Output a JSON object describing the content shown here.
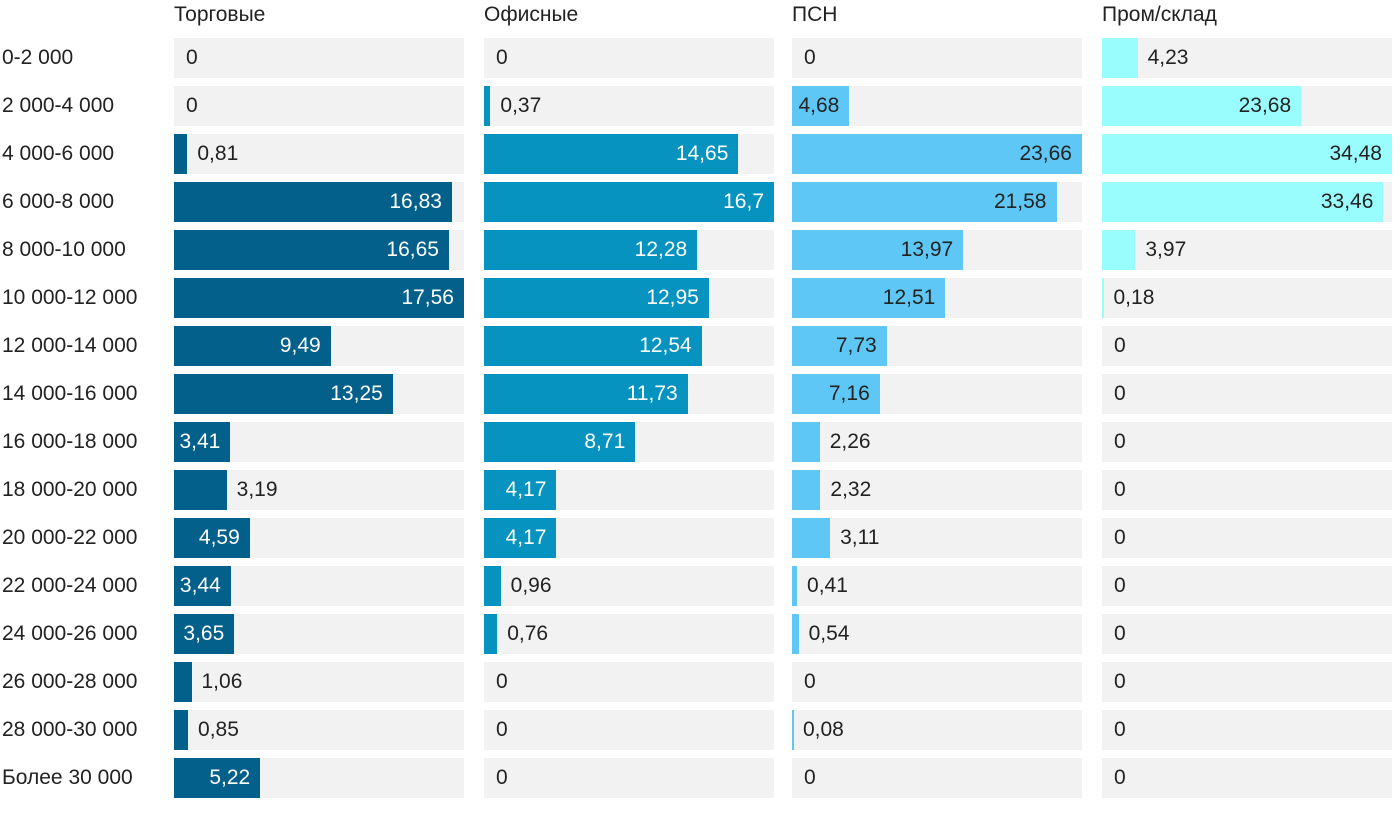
{
  "chart_data": {
    "type": "bar",
    "orientation": "horizontal",
    "layout": "small-multiples",
    "categories": [
      "0-2 000",
      "2 000-4 000",
      "4 000-6 000",
      "6 000-8 000",
      "8 000-10 000",
      "10 000-12 000",
      "12 000-14 000",
      "14 000-16 000",
      "16 000-18 000",
      "18 000-20 000",
      "20 000-22 000",
      "22 000-24 000",
      "24 000-26 000",
      "26 000-28 000",
      "28 000-30 000",
      "Более 30 000"
    ],
    "series": [
      {
        "name": "Торговые",
        "color": "#03608a",
        "label_color": "#ffffff",
        "max": 17.56,
        "values": [
          0,
          0,
          0.81,
          16.83,
          16.65,
          17.56,
          9.49,
          13.25,
          3.41,
          3.19,
          4.59,
          3.44,
          3.65,
          1.06,
          0.85,
          5.22
        ],
        "labels": [
          "0",
          "0",
          "0,81",
          "16,83",
          "16,65",
          "17,56",
          "9,49",
          "13,25",
          "3,41",
          "3,19",
          "4,59",
          "3,44",
          "3,65",
          "1,06",
          "0,85",
          "5,22"
        ]
      },
      {
        "name": "Офисные",
        "color": "#0693bf",
        "label_color": "#ffffff",
        "max": 16.7,
        "values": [
          0,
          0.37,
          14.65,
          16.7,
          12.28,
          12.95,
          12.54,
          11.73,
          8.71,
          4.17,
          4.17,
          0.96,
          0.76,
          0,
          0,
          0
        ],
        "labels": [
          "0",
          "0,37",
          "14,65",
          "16,7",
          "12,28",
          "12,95",
          "12,54",
          "11,73",
          "8,71",
          "4,17",
          "4,17",
          "0,96",
          "0,76",
          "0",
          "0",
          "0"
        ]
      },
      {
        "name": "ПСН",
        "color": "#5ec7f5",
        "label_color": "#222222",
        "max": 23.66,
        "values": [
          0,
          4.68,
          23.66,
          21.58,
          13.97,
          12.51,
          7.73,
          7.16,
          2.26,
          2.32,
          3.11,
          0.41,
          0.54,
          0,
          0.08,
          0
        ],
        "labels": [
          "0",
          "4,68",
          "23,66",
          "21,58",
          "13,97",
          "12,51",
          "7,73",
          "7,16",
          "2,26",
          "2,32",
          "3,11",
          "0,41",
          "0,54",
          "0",
          "0,08",
          "0"
        ]
      },
      {
        "name": "Пром/склад",
        "color": "#99fdfd",
        "label_color": "#222222",
        "max": 34.48,
        "values": [
          4.23,
          23.68,
          34.48,
          33.46,
          3.97,
          0.18,
          0,
          0,
          0,
          0,
          0,
          0,
          0,
          0,
          0,
          0
        ],
        "labels": [
          "4,23",
          "23,68",
          "34,48",
          "33,46",
          "3,97",
          "0,18",
          "0",
          "0",
          "0",
          "0",
          "0",
          "0",
          "0",
          "0",
          "0",
          "0"
        ]
      }
    ],
    "title": "",
    "xlabel": "",
    "ylabel": "",
    "grid": false,
    "legend": "none"
  }
}
